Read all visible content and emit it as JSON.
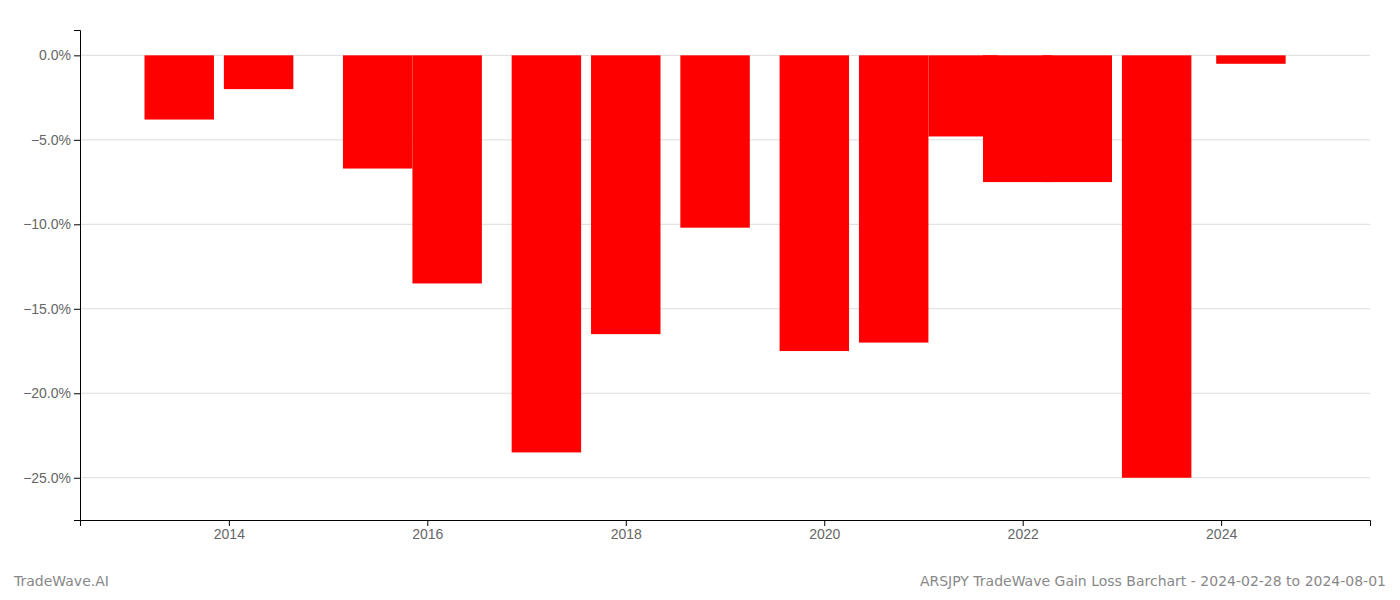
{
  "chart_data": {
    "type": "bar",
    "x": [
      2013.5,
      2014.3,
      2015.5,
      2016.2,
      2017.2,
      2018.0,
      2018.9,
      2019.9,
      2020.7,
      2021.4,
      2021.95,
      2022.55,
      2023.35,
      2024.3
    ],
    "values": [
      -3.8,
      -2.0,
      -6.7,
      -13.5,
      -23.5,
      -16.5,
      -10.2,
      -17.5,
      -17.0,
      -4.8,
      -7.5,
      -7.5,
      -25.0,
      -0.5
    ],
    "color": "#ff0000",
    "xlim": [
      2012.5,
      2025.5
    ],
    "xticks": [
      2014,
      2016,
      2018,
      2020,
      2022,
      2024
    ],
    "ylim": [
      -27.5,
      1.5
    ],
    "yticks": [
      {
        "value": 0.0,
        "label": "0.0%"
      },
      {
        "value": -5.0,
        "label": "−5.0%"
      },
      {
        "value": -10.0,
        "label": "−10.0%"
      },
      {
        "value": -15.0,
        "label": "−15.0%"
      },
      {
        "value": -20.0,
        "label": "−20.0%"
      },
      {
        "value": -25.0,
        "label": "−25.0%"
      }
    ],
    "grid": true,
    "annotations": [
      "TradeWave.AI",
      "ARSJPY TradeWave Gain Loss Barchart - 2024-02-28 to 2024-08-01"
    ]
  }
}
